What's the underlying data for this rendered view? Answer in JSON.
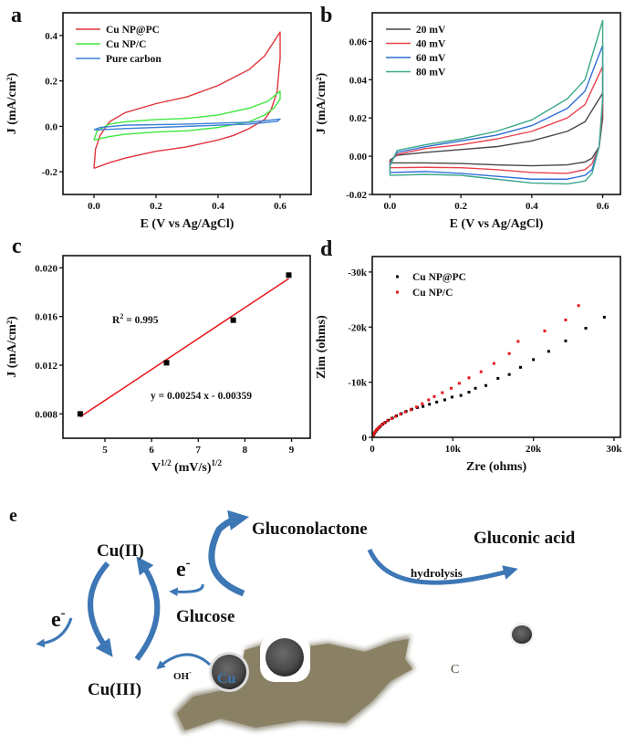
{
  "figure": {
    "panel_letters": [
      "a",
      "b",
      "c",
      "d",
      "e"
    ]
  },
  "chart_data": [
    {
      "panel": "a",
      "type": "line",
      "xlabel": "E (V vs Ag/AgCl)",
      "ylabel": "J (mA/cm²)",
      "xlim": [
        -0.1,
        0.7
      ],
      "ylim": [
        -0.3,
        0.5
      ],
      "xticks": [
        {
          "value": 0.0,
          "label": "0.0"
        },
        {
          "value": 0.2,
          "label": "0.2"
        },
        {
          "value": 0.4,
          "label": "0.4"
        },
        {
          "value": 0.6,
          "label": "0.6"
        }
      ],
      "yticks": [
        {
          "value": -0.2,
          "label": "-0.2"
        },
        {
          "value": 0.0,
          "label": "0.0"
        },
        {
          "value": 0.2,
          "label": "0.2"
        },
        {
          "value": 0.4,
          "label": "0.4"
        }
      ],
      "grid": false,
      "legend": "top-left",
      "series": [
        {
          "name": "Cu NP@PC",
          "color": "#e0353a",
          "points": [
            [
              0,
              -0.185
            ],
            [
              0.005,
              -0.1
            ],
            [
              0.02,
              -0.04
            ],
            [
              0.05,
              0.02
            ],
            [
              0.1,
              0.06
            ],
            [
              0.2,
              0.1
            ],
            [
              0.3,
              0.13
            ],
            [
              0.4,
              0.18
            ],
            [
              0.5,
              0.25
            ],
            [
              0.55,
              0.31
            ],
            [
              0.6,
              0.415
            ],
            [
              0.6,
              0.3
            ],
            [
              0.59,
              0.15
            ],
            [
              0.57,
              0.07
            ],
            [
              0.55,
              0.03
            ],
            [
              0.5,
              -0.01
            ],
            [
              0.45,
              -0.04
            ],
            [
              0.4,
              -0.06
            ],
            [
              0.3,
              -0.09
            ],
            [
              0.2,
              -0.11
            ],
            [
              0.1,
              -0.14
            ],
            [
              0.05,
              -0.16
            ],
            [
              0,
              -0.185
            ]
          ]
        },
        {
          "name": "Cu NP/C",
          "color": "#3ee83e",
          "points": [
            [
              0,
              -0.06
            ],
            [
              0.01,
              -0.02
            ],
            [
              0.05,
              0.01
            ],
            [
              0.1,
              0.02
            ],
            [
              0.2,
              0.03
            ],
            [
              0.3,
              0.035
            ],
            [
              0.4,
              0.05
            ],
            [
              0.5,
              0.08
            ],
            [
              0.56,
              0.11
            ],
            [
              0.6,
              0.155
            ],
            [
              0.6,
              0.12
            ],
            [
              0.58,
              0.08
            ],
            [
              0.55,
              0.05
            ],
            [
              0.5,
              0.02
            ],
            [
              0.4,
              -0.005
            ],
            [
              0.3,
              -0.02
            ],
            [
              0.2,
              -0.025
            ],
            [
              0.1,
              -0.035
            ],
            [
              0.05,
              -0.045
            ],
            [
              0,
              -0.06
            ]
          ]
        },
        {
          "name": "Pure carbon",
          "color": "#3b80d6",
          "points": [
            [
              0,
              -0.015
            ],
            [
              0.02,
              -0.005
            ],
            [
              0.1,
              0.005
            ],
            [
              0.3,
              0.01
            ],
            [
              0.5,
              0.018
            ],
            [
              0.6,
              0.032
            ],
            [
              0.59,
              0.022
            ],
            [
              0.5,
              0.01
            ],
            [
              0.3,
              0.0
            ],
            [
              0.1,
              -0.01
            ],
            [
              0.02,
              -0.015
            ],
            [
              0,
              -0.015
            ]
          ]
        }
      ]
    },
    {
      "panel": "b",
      "type": "line",
      "xlabel": "E (V vs Ag/AgCl)",
      "ylabel": "J (mA/cm²)",
      "xlim": [
        -0.05,
        0.65
      ],
      "ylim": [
        -0.02,
        0.075
      ],
      "xticks": [
        {
          "value": 0.0,
          "label": "0.0"
        },
        {
          "value": 0.2,
          "label": "0.2"
        },
        {
          "value": 0.4,
          "label": "0.4"
        },
        {
          "value": 0.6,
          "label": "0.6"
        }
      ],
      "yticks": [
        {
          "value": -0.02,
          "label": "-0.02"
        },
        {
          "value": 0.0,
          "label": "0.00"
        },
        {
          "value": 0.02,
          "label": "0.02"
        },
        {
          "value": 0.04,
          "label": "0.04"
        },
        {
          "value": 0.06,
          "label": "0.06"
        }
      ],
      "grid": false,
      "legend": "top-left",
      "series": [
        {
          "name": "20 mV",
          "color": "#474747",
          "points": [
            [
              0,
              -0.002
            ],
            [
              0.02,
              0.0005
            ],
            [
              0.1,
              0.002
            ],
            [
              0.2,
              0.0035
            ],
            [
              0.3,
              0.005
            ],
            [
              0.4,
              0.008
            ],
            [
              0.5,
              0.013
            ],
            [
              0.55,
              0.018
            ],
            [
              0.6,
              0.033
            ],
            [
              0.6,
              0.02
            ],
            [
              0.59,
              0.005
            ],
            [
              0.57,
              -0.001
            ],
            [
              0.55,
              -0.003
            ],
            [
              0.5,
              -0.0045
            ],
            [
              0.4,
              -0.005
            ],
            [
              0.3,
              -0.0045
            ],
            [
              0.2,
              -0.0038
            ],
            [
              0.1,
              -0.0035
            ],
            [
              0.02,
              -0.0035
            ],
            [
              0,
              -0.0035
            ],
            [
              0,
              -0.002
            ]
          ]
        },
        {
          "name": "40 mV",
          "color": "#e8424f",
          "points": [
            [
              0,
              -0.003
            ],
            [
              0.02,
              0.001
            ],
            [
              0.1,
              0.004
            ],
            [
              0.2,
              0.006
            ],
            [
              0.3,
              0.009
            ],
            [
              0.4,
              0.013
            ],
            [
              0.5,
              0.02
            ],
            [
              0.55,
              0.027
            ],
            [
              0.6,
              0.047
            ],
            [
              0.6,
              0.025
            ],
            [
              0.59,
              0.005
            ],
            [
              0.57,
              -0.004
            ],
            [
              0.55,
              -0.007
            ],
            [
              0.5,
              -0.009
            ],
            [
              0.4,
              -0.0085
            ],
            [
              0.3,
              -0.007
            ],
            [
              0.2,
              -0.006
            ],
            [
              0.1,
              -0.0058
            ],
            [
              0,
              -0.006
            ],
            [
              0,
              -0.003
            ]
          ]
        },
        {
          "name": "60 mV",
          "color": "#2f6fd6",
          "points": [
            [
              0,
              -0.004
            ],
            [
              0.02,
              0.002
            ],
            [
              0.1,
              0.005
            ],
            [
              0.2,
              0.008
            ],
            [
              0.3,
              0.011
            ],
            [
              0.4,
              0.016
            ],
            [
              0.5,
              0.025
            ],
            [
              0.55,
              0.034
            ],
            [
              0.6,
              0.058
            ],
            [
              0.6,
              0.03
            ],
            [
              0.59,
              0.005
            ],
            [
              0.57,
              -0.007
            ],
            [
              0.55,
              -0.01
            ],
            [
              0.5,
              -0.012
            ],
            [
              0.4,
              -0.012
            ],
            [
              0.3,
              -0.0105
            ],
            [
              0.2,
              -0.009
            ],
            [
              0.1,
              -0.008
            ],
            [
              0,
              -0.0085
            ],
            [
              0,
              -0.004
            ]
          ]
        },
        {
          "name": "80 mV",
          "color": "#3aa88a",
          "points": [
            [
              0,
              -0.005
            ],
            [
              0.02,
              0.003
            ],
            [
              0.1,
              0.006
            ],
            [
              0.2,
              0.009
            ],
            [
              0.3,
              0.013
            ],
            [
              0.4,
              0.019
            ],
            [
              0.5,
              0.03
            ],
            [
              0.55,
              0.04
            ],
            [
              0.6,
              0.071
            ],
            [
              0.6,
              0.03
            ],
            [
              0.59,
              0.005
            ],
            [
              0.57,
              -0.009
            ],
            [
              0.55,
              -0.013
            ],
            [
              0.5,
              -0.0145
            ],
            [
              0.4,
              -0.014
            ],
            [
              0.3,
              -0.012
            ],
            [
              0.2,
              -0.01
            ],
            [
              0.1,
              -0.0095
            ],
            [
              0,
              -0.01
            ],
            [
              0,
              -0.005
            ]
          ]
        }
      ]
    },
    {
      "panel": "c",
      "type": "scatter",
      "xlabel": "V",
      "xlabel_sup": "1/2",
      "xlabel_rest": " (mV/s)",
      "xlabel_sup2": "1/2",
      "ylabel": "J (mA/cm²)",
      "xlim": [
        4.1,
        9.4
      ],
      "ylim": [
        0.006,
        0.021
      ],
      "xticks": [
        {
          "value": 5,
          "label": "5"
        },
        {
          "value": 6,
          "label": "6"
        },
        {
          "value": 7,
          "label": "7"
        },
        {
          "value": 8,
          "label": "8"
        },
        {
          "value": 9,
          "label": "9"
        }
      ],
      "yticks": [
        {
          "value": 0.008,
          "label": "0.008"
        },
        {
          "value": 0.012,
          "label": "0.012"
        },
        {
          "value": 0.016,
          "label": "0.016"
        },
        {
          "value": 0.02,
          "label": "0.020"
        }
      ],
      "grid": false,
      "points": [
        [
          4.47,
          0.008
        ],
        [
          6.32,
          0.0122
        ],
        [
          7.75,
          0.0157
        ],
        [
          8.94,
          0.0194
        ]
      ],
      "point_color": "#000000",
      "fit": {
        "slope": 0.00254,
        "intercept": -0.00359,
        "x_range": [
          4.47,
          8.94
        ],
        "color": "#e8161b"
      },
      "annotations": {
        "r2_label": "R",
        "r2_sup": "2",
        "r2_value": " = 0.995",
        "equation": "y = 0.00254 x - 0.00359"
      }
    },
    {
      "panel": "d",
      "type": "scatter",
      "xlabel": "Zre (ohms)",
      "ylabel": "Zim (ohms)",
      "xlim": [
        0,
        30800
      ],
      "ylim": [
        0,
        -32800
      ],
      "xticks": [
        {
          "value": 0,
          "label": "0"
        },
        {
          "value": 10000,
          "label": "10k"
        },
        {
          "value": 20000,
          "label": "20k"
        },
        {
          "value": 30000,
          "label": "30k"
        }
      ],
      "yticks": [
        {
          "value": 0,
          "label": "0"
        },
        {
          "value": -10000,
          "label": "-10k"
        },
        {
          "value": -20000,
          "label": "-20k"
        },
        {
          "value": -30000,
          "label": "-30k"
        }
      ],
      "grid": false,
      "legend": "top-left",
      "series": [
        {
          "name": "Cu NP@PC",
          "color": "#000000",
          "points": [
            [
              100,
              -200
            ],
            [
              200,
              -500
            ],
            [
              300,
              -800
            ],
            [
              450,
              -1100
            ],
            [
              600,
              -1400
            ],
            [
              800,
              -1700
            ],
            [
              1000,
              -2000
            ],
            [
              1300,
              -2400
            ],
            [
              1600,
              -2700
            ],
            [
              2000,
              -3100
            ],
            [
              2500,
              -3500
            ],
            [
              3000,
              -3900
            ],
            [
              3600,
              -4300
            ],
            [
              4200,
              -4700
            ],
            [
              4900,
              -5100
            ],
            [
              5600,
              -5400
            ],
            [
              6300,
              -5600
            ],
            [
              7100,
              -6000
            ],
            [
              8000,
              -6400
            ],
            [
              9000,
              -6800
            ],
            [
              9900,
              -7300
            ],
            [
              11000,
              -7600
            ],
            [
              12000,
              -8200
            ],
            [
              12800,
              -8900
            ],
            [
              14100,
              -9400
            ],
            [
              15600,
              -10700
            ],
            [
              17000,
              -11400
            ],
            [
              18400,
              -12700
            ],
            [
              20000,
              -14100
            ],
            [
              21900,
              -15600
            ],
            [
              24000,
              -17500
            ],
            [
              26500,
              -19800
            ],
            [
              28800,
              -21800
            ]
          ]
        },
        {
          "name": "Cu NP/C",
          "color": "#e8161b",
          "points": [
            [
              50,
              -150
            ],
            [
              120,
              -400
            ],
            [
              220,
              -700
            ],
            [
              350,
              -1000
            ],
            [
              500,
              -1300
            ],
            [
              700,
              -1600
            ],
            [
              900,
              -1900
            ],
            [
              1200,
              -2300
            ],
            [
              1500,
              -2600
            ],
            [
              1900,
              -3000
            ],
            [
              2400,
              -3400
            ],
            [
              2900,
              -3800
            ],
            [
              3500,
              -4200
            ],
            [
              4100,
              -4600
            ],
            [
              4800,
              -5000
            ],
            [
              5500,
              -5500
            ],
            [
              6200,
              -6100
            ],
            [
              7000,
              -6800
            ],
            [
              7700,
              -7400
            ],
            [
              8700,
              -8100
            ],
            [
              9800,
              -8900
            ],
            [
              10800,
              -9800
            ],
            [
              12000,
              -10800
            ],
            [
              13500,
              -11900
            ],
            [
              15100,
              -13400
            ],
            [
              17000,
              -15200
            ],
            [
              18100,
              -17400
            ],
            [
              21400,
              -19300
            ],
            [
              24000,
              -21300
            ],
            [
              25600,
              -23900
            ]
          ]
        }
      ]
    }
  ],
  "diagram": {
    "cu2": "Cu(II)",
    "cu3": "Cu(III)",
    "electron_top": "e",
    "electron_left": "e",
    "electron_sup": "-",
    "glucose": "Glucose",
    "gluconolactone": "Gluconolactone",
    "gluconic_acid": "Gluconic acid",
    "hydrolysis": "hydrolysis",
    "hydroxide": "OH",
    "hydroxide_sup": "-",
    "cu_particle": "Cu",
    "carbon": "C",
    "arrow_color": "#3d77b5",
    "carbon_color": "#8a8164",
    "particle_color": "#555555"
  }
}
